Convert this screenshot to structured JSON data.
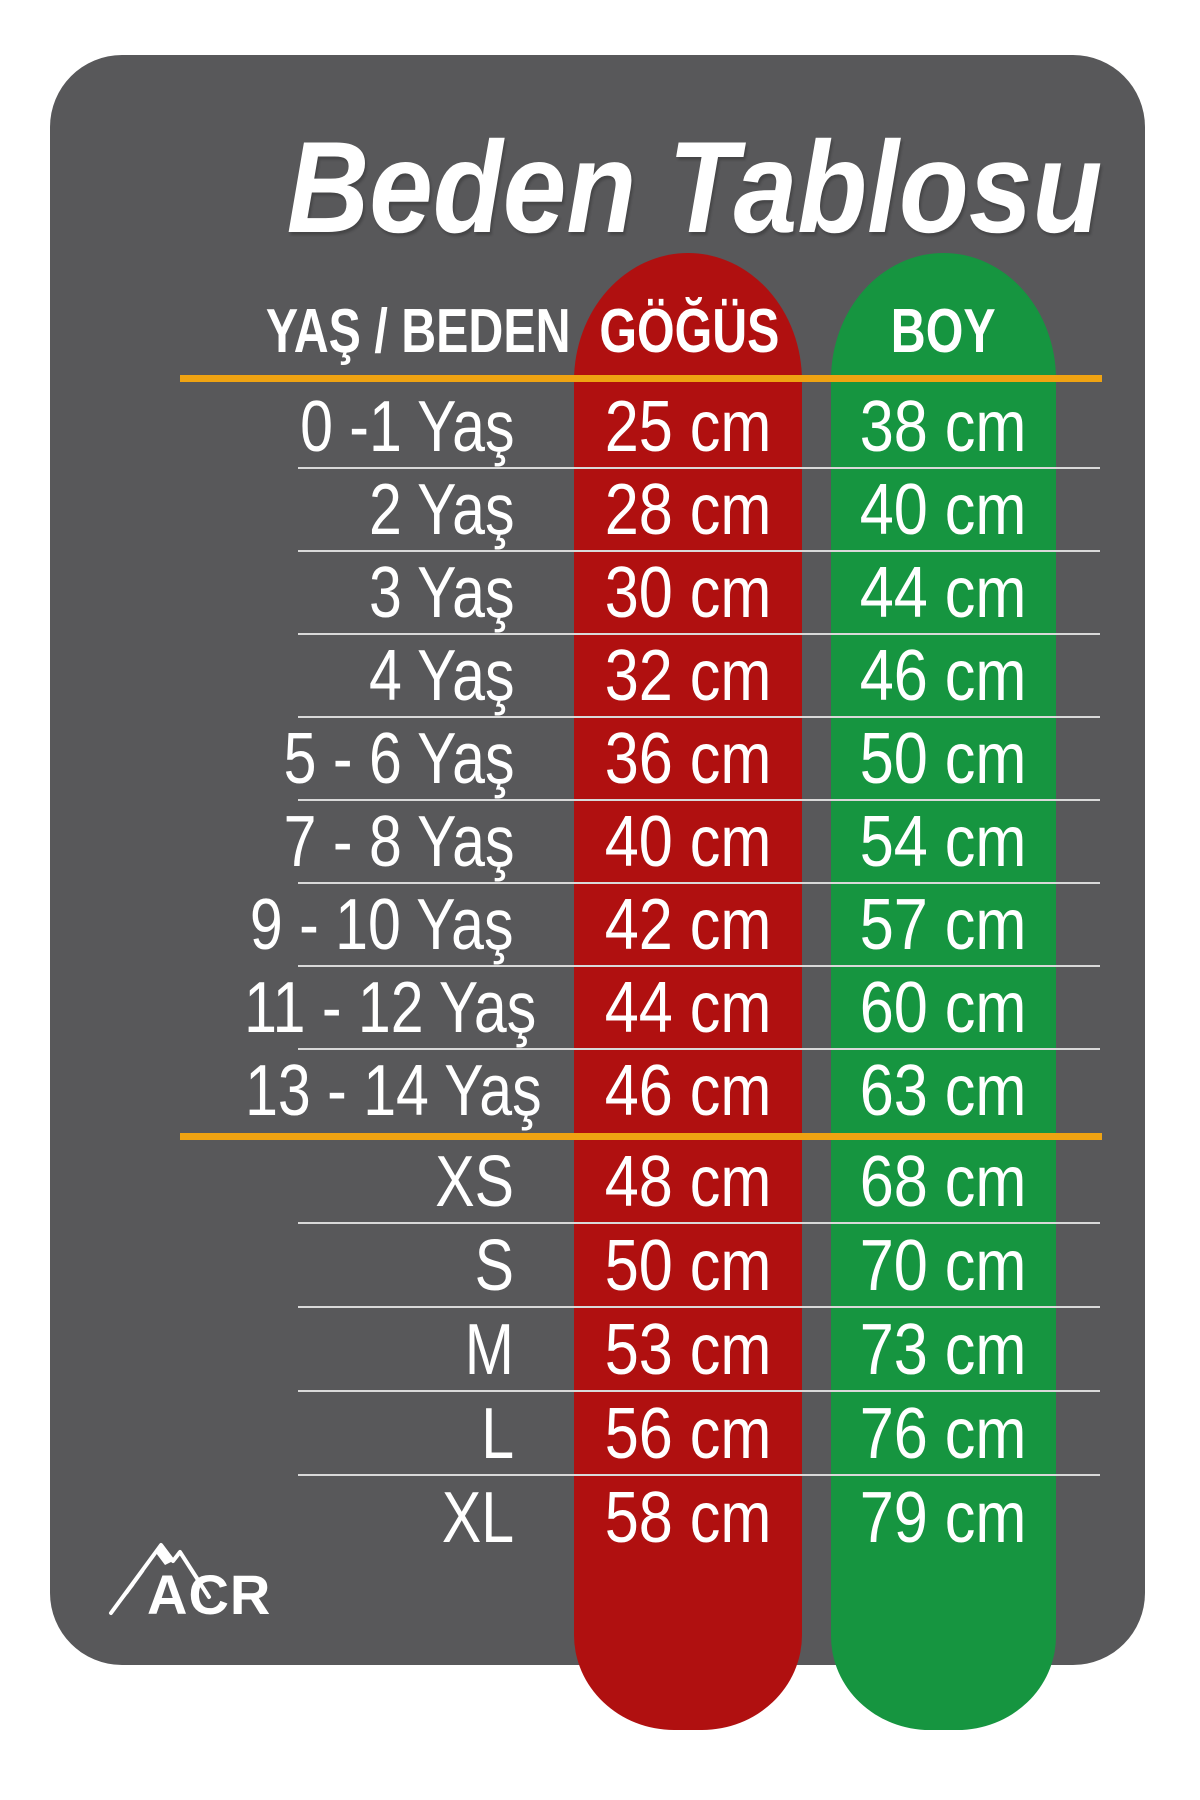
{
  "chart_data": {
    "type": "table",
    "title": "Beden Tablosu",
    "columns": [
      "YAŞ / BEDEN",
      "GÖĞÜS",
      "BOY"
    ],
    "rows": [
      {
        "label": "0 -1 Yaş",
        "chest": "25 cm",
        "height": "38 cm"
      },
      {
        "label": "2 Yaş",
        "chest": "28 cm",
        "height": "40 cm"
      },
      {
        "label": "3 Yaş",
        "chest": "30 cm",
        "height": "44 cm"
      },
      {
        "label": "4 Yaş",
        "chest": "32 cm",
        "height": "46 cm"
      },
      {
        "label": "5 - 6 Yaş",
        "chest": "36 cm",
        "height": "50 cm"
      },
      {
        "label": "7 - 8 Yaş",
        "chest": "40 cm",
        "height": "54 cm"
      },
      {
        "label": "9 - 10 Yaş",
        "chest": "42 cm",
        "height": "57 cm"
      },
      {
        "label": "11 - 12 Yaş",
        "chest": "44 cm",
        "height": "60 cm"
      },
      {
        "label": "13 - 14 Yaş",
        "chest": "46 cm",
        "height": "63 cm"
      },
      {
        "label": "XS",
        "chest": "48 cm",
        "height": "68 cm"
      },
      {
        "label": "S",
        "chest": "50 cm",
        "height": "70 cm"
      },
      {
        "label": "M",
        "chest": "53 cm",
        "height": "73 cm"
      },
      {
        "label": "L",
        "chest": "56 cm",
        "height": "76 cm"
      },
      {
        "label": "XL",
        "chest": "58 cm",
        "height": "79 cm"
      }
    ],
    "group_divider_after_row": 9,
    "legend_position": "none",
    "grid": "row-separators"
  },
  "logo": {
    "text": "ACR"
  },
  "colors": {
    "page_bg": "#ffffff",
    "card_bg": "#58585a",
    "chest_pill": "#b01010",
    "height_pill": "#169540",
    "divider_orange": "#efa312",
    "row_separator": "#d9d9d9",
    "text": "#ffffff"
  }
}
